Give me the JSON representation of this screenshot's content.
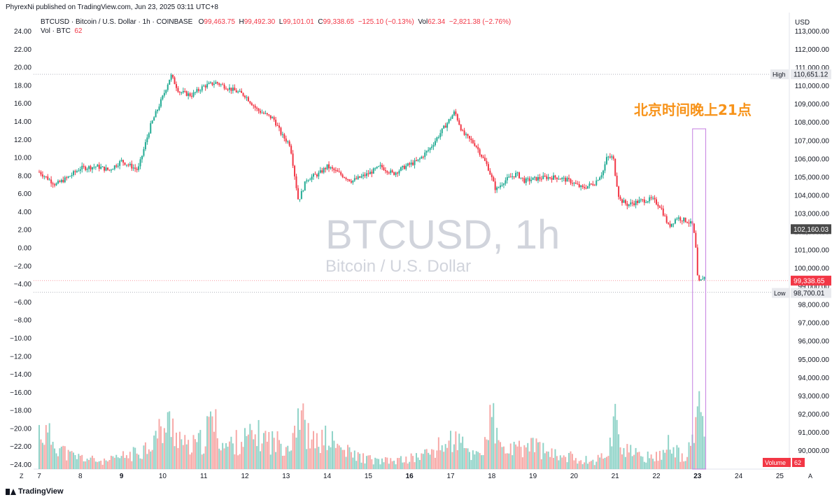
{
  "header": {
    "published_by": "PhyrexNi published on TradingView.com, Jun 23, 2025 03:11 UTC+8"
  },
  "legend": {
    "symbol": "BTCUSD · Bitcoin / U.S. Dollar · 1h · COINBASE",
    "o_label": "O",
    "o_value": "99,463.75",
    "h_label": "H",
    "h_value": "99,492.30",
    "l_label": "L",
    "l_value": "99,101.01",
    "c_label": "C",
    "c_value": "99,338.65",
    "change": "−125.10 (−0.13%)",
    "vol_label": "Vol",
    "vol_value": "62.34",
    "vol_change": "−2,821.38 (−2.76%)",
    "vol_line_label": "Vol · BTC",
    "vol_line_value": "62"
  },
  "footer": {
    "brand": "TradingView"
  },
  "colors": {
    "up": "#22ab94",
    "down": "#f23645",
    "vol_up": "#8fd3c8",
    "vol_down": "#f7a9a7",
    "annotation": "#f7931a",
    "highlight_box": "#c47ee0"
  },
  "chart_data": {
    "type": "candlestick",
    "watermark_title": "BTCUSD, 1h",
    "watermark_subtitle": "Bitcoin / U.S. Dollar",
    "annotation": "北京时间晚上21点",
    "right_axis": {
      "currency": "USD",
      "ylim": [
        89000,
        113500
      ],
      "ticks": [
        "113,000.00",
        "112,000.00",
        "111,000.00",
        "110,000.00",
        "109,000.00",
        "108,000.00",
        "107,000.00",
        "106,000.00",
        "105,000.00",
        "104,000.00",
        "103,000.00",
        "102,000.00",
        "101,000.00",
        "100,000.00",
        "99,000.00",
        "98,000.00",
        "97,000.00",
        "96,000.00",
        "95,000.00",
        "94,000.00",
        "93,000.00",
        "92,000.00",
        "91,000.00",
        "90,000.00"
      ],
      "tick_values": [
        113000,
        112000,
        111000,
        110000,
        109000,
        108000,
        107000,
        106000,
        105000,
        104000,
        103000,
        102000,
        101000,
        100000,
        99000,
        98000,
        97000,
        96000,
        95000,
        94000,
        93000,
        92000,
        91000,
        90000
      ]
    },
    "left_axis": {
      "ticks": [
        "24.00",
        "22.00",
        "20.00",
        "18.00",
        "16.00",
        "14.00",
        "12.00",
        "10.00",
        "8.00",
        "6.00",
        "4.00",
        "2.00",
        "0.00",
        "−2.00",
        "−4.00",
        "−6.00",
        "−8.00",
        "−10.00",
        "−12.00",
        "−14.00",
        "−16.00",
        "−18.00",
        "−20.00",
        "−22.00",
        "−24.00"
      ]
    },
    "x_axis": {
      "ticks": [
        "7",
        "8",
        "9",
        "10",
        "11",
        "12",
        "13",
        "14",
        "15",
        "16",
        "17",
        "18",
        "19",
        "20",
        "21",
        "22",
        "23",
        "24",
        "25"
      ],
      "bold_ticks": [
        "9",
        "16",
        "23"
      ],
      "zoom_label": "Z",
      "auto_label": "A"
    },
    "labels": {
      "high_label": "High",
      "high_value": "110,651.12",
      "high_price": 110651.12,
      "low_label": "Low",
      "low_value": "98,700.01",
      "low_price": 98700.01,
      "last_value": "99,338.65",
      "last_price": 99338.65,
      "crosshair_value": "102,160.03",
      "crosshair_price": 102160.03,
      "volume_label": "Volume",
      "volume_value": "62"
    },
    "highlight_window": {
      "from_day": 22.88,
      "to_day": 23.2
    },
    "price_path": [
      [
        7.0,
        105300
      ],
      [
        7.4,
        104600
      ],
      [
        7.7,
        105000
      ],
      [
        8.0,
        105500
      ],
      [
        8.4,
        105600
      ],
      [
        8.7,
        105400
      ],
      [
        9.0,
        105900
      ],
      [
        9.4,
        105400
      ],
      [
        9.7,
        107800
      ],
      [
        10.0,
        109400
      ],
      [
        10.2,
        110600
      ],
      [
        10.4,
        109700
      ],
      [
        10.7,
        109500
      ],
      [
        11.0,
        110000
      ],
      [
        11.3,
        110200
      ],
      [
        11.7,
        109800
      ],
      [
        12.0,
        109500
      ],
      [
        12.3,
        108700
      ],
      [
        12.7,
        108200
      ],
      [
        12.9,
        107300
      ],
      [
        13.1,
        106800
      ],
      [
        13.3,
        103700
      ],
      [
        13.5,
        104900
      ],
      [
        13.8,
        105200
      ],
      [
        14.0,
        105600
      ],
      [
        14.3,
        105200
      ],
      [
        14.6,
        104800
      ],
      [
        15.0,
        105200
      ],
      [
        15.3,
        105600
      ],
      [
        15.6,
        105200
      ],
      [
        15.9,
        105600
      ],
      [
        16.2,
        105900
      ],
      [
        16.5,
        106600
      ],
      [
        16.8,
        107600
      ],
      [
        17.1,
        108600
      ],
      [
        17.3,
        107400
      ],
      [
        17.6,
        106800
      ],
      [
        17.9,
        105600
      ],
      [
        18.1,
        104300
      ],
      [
        18.3,
        104800
      ],
      [
        18.6,
        105200
      ],
      [
        18.8,
        104800
      ],
      [
        19.0,
        104900
      ],
      [
        19.3,
        105000
      ],
      [
        19.6,
        105000
      ],
      [
        19.9,
        104800
      ],
      [
        20.2,
        104400
      ],
      [
        20.5,
        104700
      ],
      [
        20.7,
        105300
      ],
      [
        20.8,
        106100
      ],
      [
        20.95,
        106100
      ],
      [
        21.0,
        105200
      ],
      [
        21.1,
        103800
      ],
      [
        21.3,
        103500
      ],
      [
        21.6,
        103700
      ],
      [
        21.9,
        103800
      ],
      [
        22.1,
        103400
      ],
      [
        22.3,
        102300
      ],
      [
        22.5,
        102800
      ],
      [
        22.75,
        102600
      ],
      [
        22.88,
        102400
      ],
      [
        22.95,
        101400
      ],
      [
        23.0,
        99500
      ],
      [
        23.05,
        99200
      ],
      [
        23.15,
        99600
      ],
      [
        23.2,
        99340
      ]
    ],
    "volume_path": [
      [
        7.0,
        0.38
      ],
      [
        7.3,
        0.3
      ],
      [
        7.7,
        0.14
      ],
      [
        8.2,
        0.1
      ],
      [
        8.6,
        0.07
      ],
      [
        9.0,
        0.12
      ],
      [
        9.3,
        0.15
      ],
      [
        9.6,
        0.22
      ],
      [
        9.9,
        0.35
      ],
      [
        10.2,
        0.45
      ],
      [
        10.6,
        0.2
      ],
      [
        11.0,
        0.28
      ],
      [
        11.2,
        0.5
      ],
      [
        11.5,
        0.22
      ],
      [
        11.9,
        0.28
      ],
      [
        12.3,
        0.33
      ],
      [
        12.8,
        0.26
      ],
      [
        13.1,
        0.25
      ],
      [
        13.3,
        0.6
      ],
      [
        13.6,
        0.25
      ],
      [
        14.0,
        0.3
      ],
      [
        14.4,
        0.18
      ],
      [
        14.8,
        0.12
      ],
      [
        15.2,
        0.08
      ],
      [
        15.6,
        0.08
      ],
      [
        16.0,
        0.1
      ],
      [
        16.4,
        0.15
      ],
      [
        16.8,
        0.23
      ],
      [
        17.1,
        0.3
      ],
      [
        17.5,
        0.14
      ],
      [
        17.8,
        0.2
      ],
      [
        18.0,
        0.52
      ],
      [
        18.2,
        0.2
      ],
      [
        18.6,
        0.18
      ],
      [
        19.0,
        0.25
      ],
      [
        19.4,
        0.14
      ],
      [
        19.8,
        0.13
      ],
      [
        20.1,
        0.1
      ],
      [
        20.5,
        0.08
      ],
      [
        20.8,
        0.15
      ],
      [
        21.0,
        0.5
      ],
      [
        21.2,
        0.2
      ],
      [
        21.6,
        0.12
      ],
      [
        22.0,
        0.12
      ],
      [
        22.3,
        0.25
      ],
      [
        22.7,
        0.08
      ],
      [
        22.95,
        0.35
      ],
      [
        23.0,
        0.72
      ],
      [
        23.1,
        0.6
      ],
      [
        23.2,
        0.3
      ]
    ]
  }
}
